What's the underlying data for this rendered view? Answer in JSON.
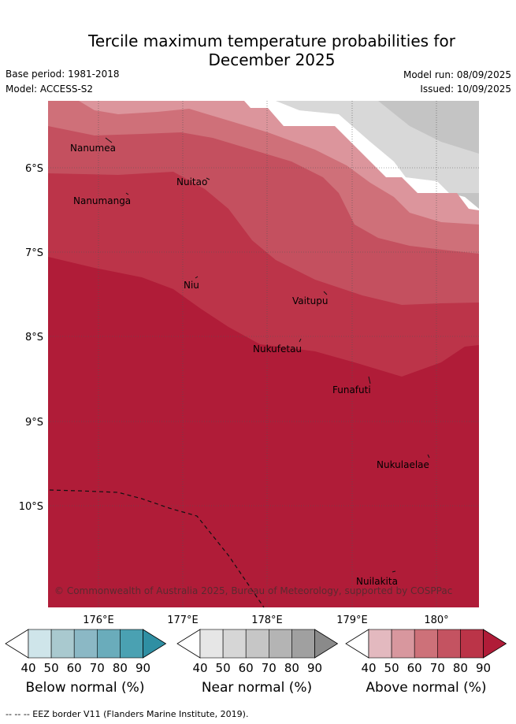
{
  "header": {
    "title_line1": "Tercile maximum temperature probabilities for",
    "title_line2": "December 2025",
    "base_period": "Base period: 1981-2018",
    "model": "Model: ACCESS-S2",
    "model_run": "Model run: 08/09/2025",
    "issued": "Issued: 10/09/2025"
  },
  "map": {
    "lat_labels": [
      "6°S",
      "7°S",
      "8°S",
      "9°S",
      "10°S"
    ],
    "lon_labels": [
      "176°E",
      "177°E",
      "178°E",
      "179°E",
      "180°"
    ],
    "places": [
      "Nanumea",
      "Nuitao",
      "Nanumanga",
      "Niu",
      "Vaitupu",
      "Nukufetau",
      "Funafuti",
      "Nukulaelae",
      "Nuilakita"
    ],
    "copyright": "© Commonwealth of Australia 2025, Bureau of Meteorology, supported by COSPPac"
  },
  "colorbars": [
    {
      "title": "Below normal (%)",
      "ticks": [
        "40",
        "50",
        "60",
        "70",
        "80",
        "90"
      ],
      "colors": [
        "#cfe5ea",
        "#a9c9cf",
        "#8bb8c5",
        "#6aacbb",
        "#4aa1b2",
        "#2f8fa3"
      ]
    },
    {
      "title": "Near normal (%)",
      "ticks": [
        "40",
        "50",
        "60",
        "70",
        "80",
        "90"
      ],
      "colors": [
        "#e6e6e6",
        "#d6d6d6",
        "#c6c6c6",
        "#b4b4b4",
        "#a0a0a0",
        "#8a8a8a"
      ]
    },
    {
      "title": "Above normal (%)",
      "ticks": [
        "40",
        "50",
        "60",
        "70",
        "80",
        "90"
      ],
      "colors": [
        "#e3b9bf",
        "#d8979e",
        "#cd7179",
        "#c45361",
        "#bb3448",
        "#b01c38"
      ]
    }
  ],
  "footer": "--  --  -- EEZ border V11 (Flanders Marine Institute, 2019)."
}
